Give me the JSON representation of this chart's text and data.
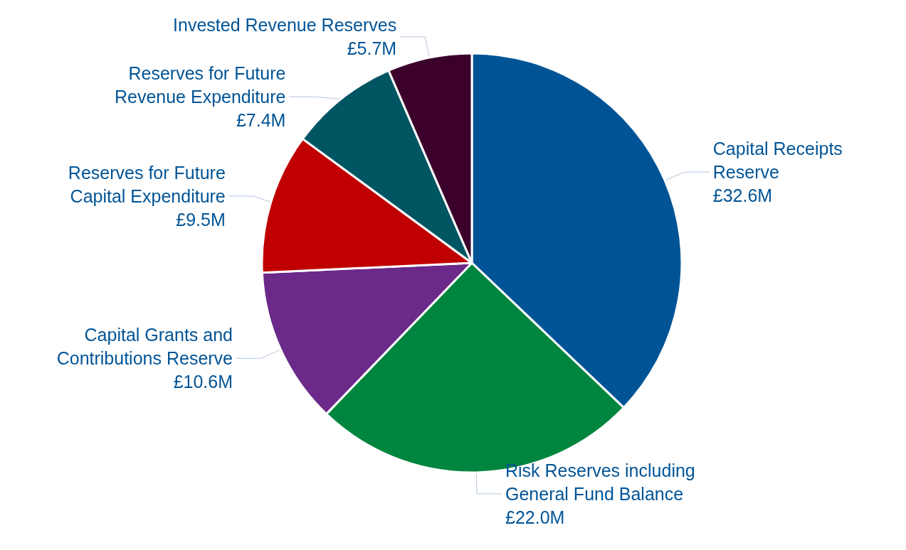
{
  "chart_data": {
    "type": "pie",
    "categories": [
      "Capital Receipts\nReserve",
      "Risk Reserves including\nGeneral Fund Balance",
      "Capital Grants and\nContributions Reserve",
      "Reserves for Future\nCapital Expenditure",
      "Reserves for Future\nRevenue Expenditure",
      "Invested Revenue Reserves"
    ],
    "values": [
      32.6,
      22.0,
      10.6,
      9.5,
      7.4,
      5.7
    ],
    "value_labels": [
      "£32.6M",
      "£22.0M",
      "£10.6M",
      "£9.5M",
      "£7.4M",
      "£5.7M"
    ],
    "colors": [
      "#005496",
      "#00853e",
      "#6b2a8a",
      "#c00000",
      "#005563",
      "#3c002c"
    ],
    "legend": false
  }
}
